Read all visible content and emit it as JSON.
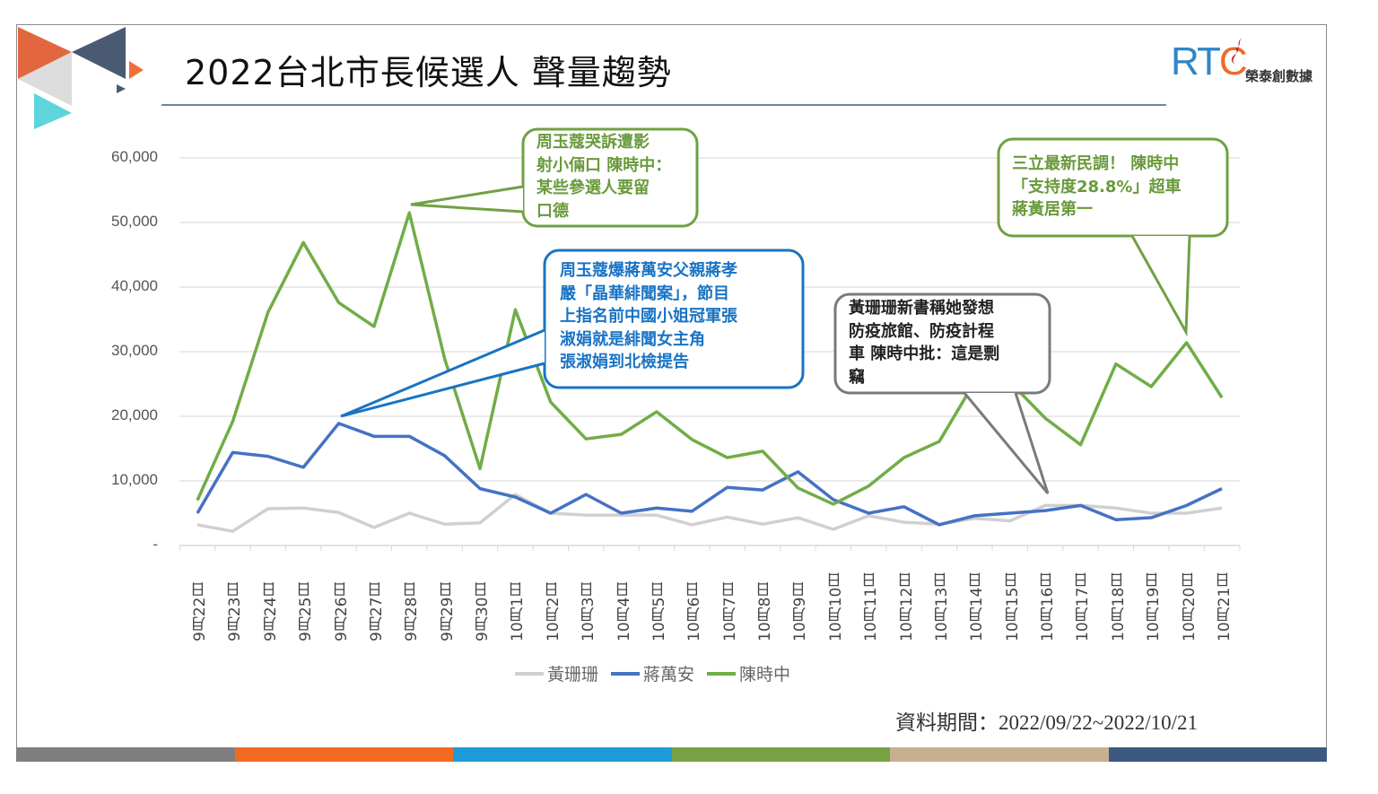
{
  "title": "2022台北市長候選人 聲量趨勢",
  "logo": {
    "text": "RTC",
    "subtitle": "榮泰創數據"
  },
  "colors": {
    "gray": "#d0d0d0",
    "blue": "#4472c4",
    "green": "#70ad47",
    "bar": [
      "#7f7f7f",
      "#f26a22",
      "#1e9bd7",
      "#77a142",
      "#c6b08f",
      "#3d5980"
    ]
  },
  "period": "資料期間：2022/09/22~2022/10/21",
  "callouts": [
    {
      "color": "#70a044",
      "text_color": "#6a9a3c",
      "lines": [
        "周玉蔻哭訴遭影",
        "射小倆口 陳時中：",
        "某些參選人要留",
        "口德"
      ]
    },
    {
      "color": "#1a73c4",
      "text_color": "#1a73c4",
      "lines": [
        "周玉蔻爆蔣萬安父親蔣孝",
        "嚴「晶華緋聞案」，節目",
        "上指名前中國小姐冠軍張",
        "淑娟就是緋聞女主角",
        "張淑娟到北檢提告"
      ]
    },
    {
      "color": "#7a7a7a",
      "text_color": "#222",
      "lines": [
        "黃珊珊新書稱她發想",
        "防疫旅館、防疫計程",
        "車 陳時中批：這是剽",
        "竊"
      ]
    },
    {
      "color": "#70a044",
      "text_color": "#6a9a3c",
      "lines": [
        "三立最新民調！ 陳時中",
        "「支持度28.8%」超車",
        "蔣黃居第一"
      ]
    }
  ],
  "chart_data": {
    "type": "line",
    "title": "2022台北市長候選人 聲量趨勢",
    "xlabel": "",
    "ylabel": "",
    "ylim": [
      0,
      60000
    ],
    "yticks": [
      "-",
      "10,000",
      "20,000",
      "30,000",
      "40,000",
      "50,000",
      "60,000"
    ],
    "grid": true,
    "legend": "bottom",
    "categories": [
      "9月22日",
      "9月23日",
      "9月24日",
      "9月25日",
      "9月26日",
      "9月27日",
      "9月28日",
      "9月29日",
      "9月30日",
      "10月1日",
      "10月2日",
      "10月3日",
      "10月4日",
      "10月5日",
      "10月6日",
      "10月7日",
      "10月8日",
      "10月9日",
      "10月10日",
      "10月11日",
      "10月12日",
      "10月13日",
      "10月14日",
      "10月15日",
      "10月16日",
      "10月17日",
      "10月18日",
      "10月19日",
      "10月20日",
      "10月21日"
    ],
    "series": [
      {
        "name": "黃珊珊",
        "color": "#d0d0d0",
        "values": [
          3200,
          2200,
          5700,
          5800,
          5100,
          2800,
          5000,
          3300,
          3500,
          7900,
          5000,
          4700,
          4700,
          4700,
          3200,
          4400,
          3300,
          4300,
          2500,
          4600,
          3600,
          3300,
          4200,
          3800,
          6200,
          6200,
          5800,
          5000,
          5000,
          5800
        ]
      },
      {
        "name": "蔣萬安",
        "color": "#4472c4",
        "values": [
          5000,
          14400,
          13800,
          12100,
          18900,
          16900,
          16900,
          13900,
          8800,
          7500,
          5000,
          7900,
          5000,
          5800,
          5300,
          9000,
          8600,
          11400,
          7100,
          5000,
          6000,
          3200,
          4600,
          5000,
          5400,
          6200,
          4000,
          4300,
          6200,
          8800
        ]
      },
      {
        "name": "陳時中",
        "color": "#70ad47",
        "values": [
          7000,
          19200,
          36100,
          46900,
          37600,
          33900,
          51500,
          28900,
          11900,
          36500,
          22200,
          16500,
          17200,
          20700,
          16400,
          13600,
          14600,
          8900,
          6400,
          9200,
          13600,
          16100,
          25300,
          25300,
          19700,
          15600,
          28100,
          24600,
          31400,
          22900
        ]
      }
    ]
  }
}
